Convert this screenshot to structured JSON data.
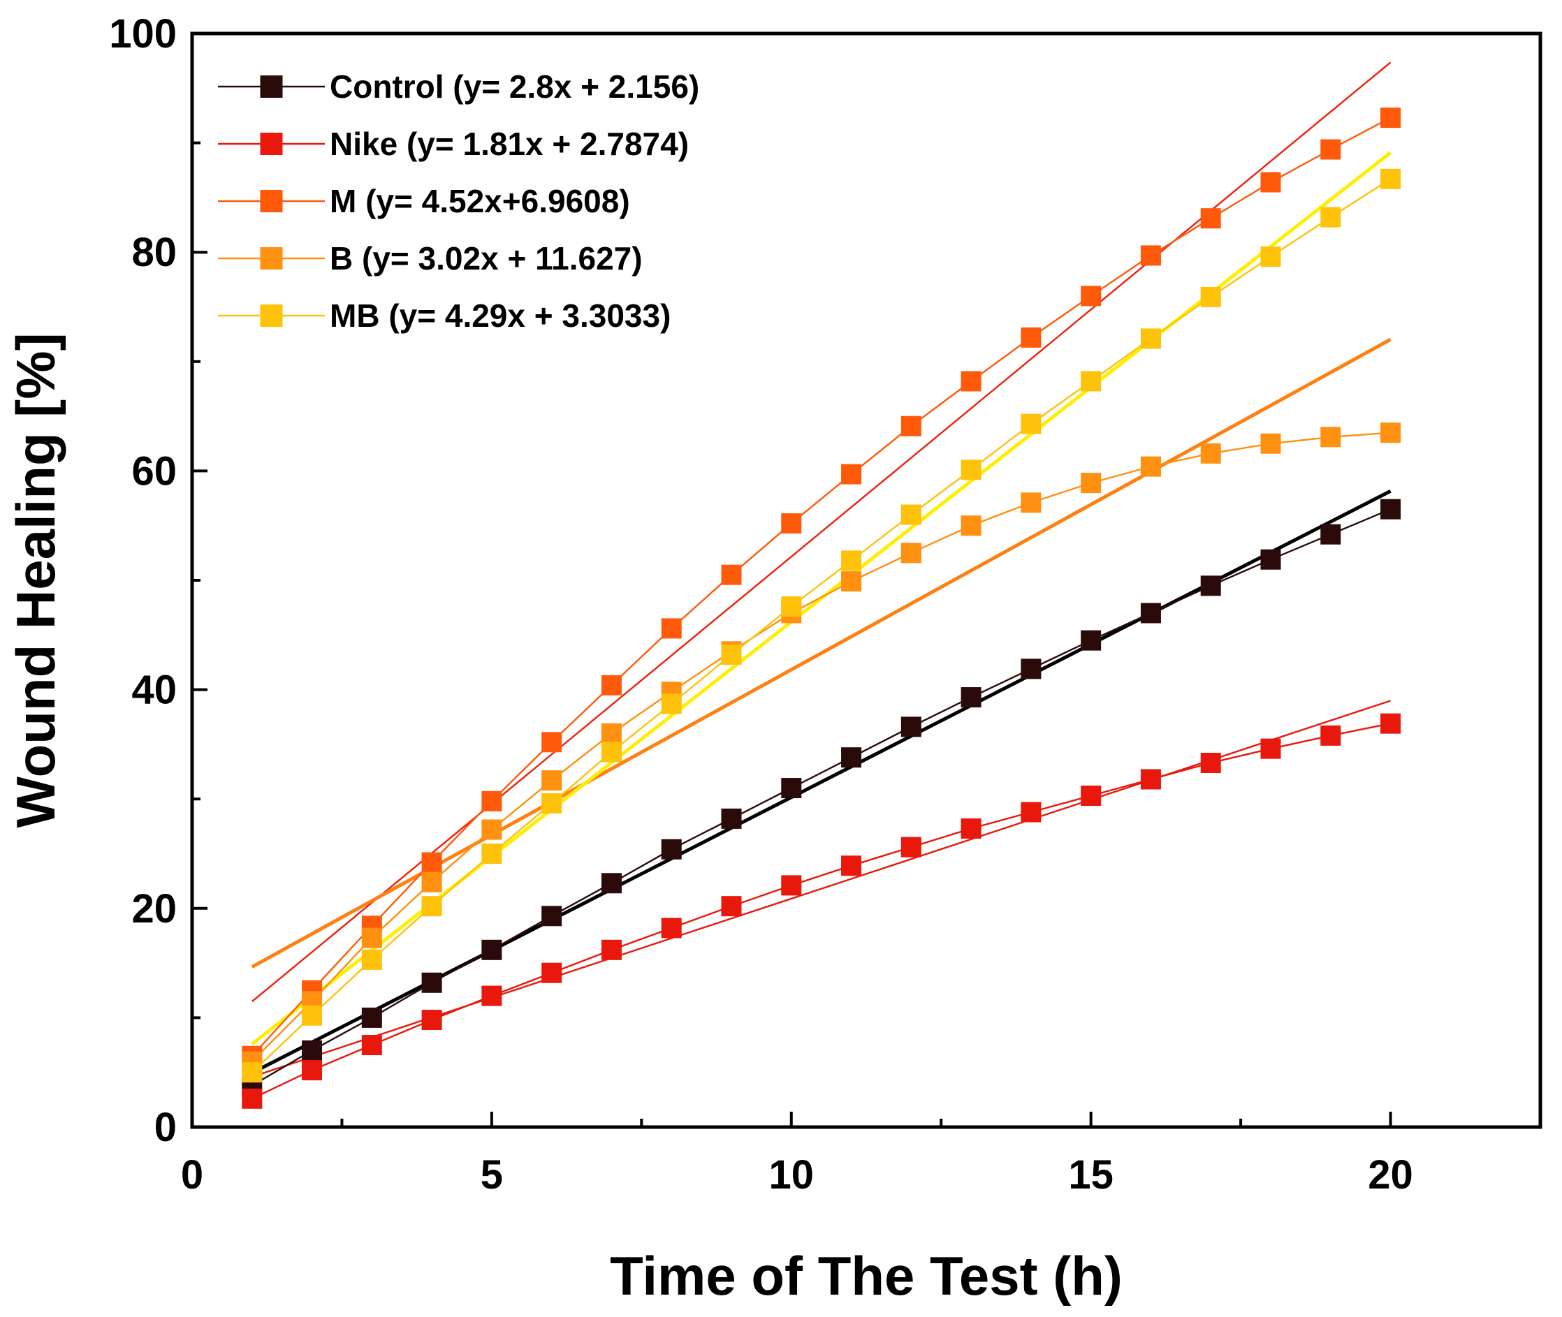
{
  "chart_data": {
    "type": "line",
    "title": "",
    "xlabel": "Time of The Test (h)",
    "ylabel": "Wound Healing [%]",
    "xlim": [
      0,
      22.5
    ],
    "ylim": [
      0,
      100
    ],
    "x_ticks": [
      0,
      5,
      10,
      15,
      20
    ],
    "x_tick_labels": [
      "0",
      "5",
      "10",
      "15",
      "20"
    ],
    "x_minor_ticks": [
      2.5,
      7.5,
      12.5,
      17.5,
      22.5
    ],
    "y_ticks": [
      0,
      20,
      40,
      60,
      80,
      100
    ],
    "y_tick_labels": [
      "0",
      "20",
      "40",
      "60",
      "80",
      "100"
    ],
    "y_minor_ticks": [
      10,
      30,
      50,
      70,
      90
    ],
    "grid": false,
    "legend_position": "top-left",
    "x": [
      1,
      2,
      3,
      4,
      5,
      6,
      7,
      8,
      9,
      10,
      11,
      12,
      13,
      14,
      15,
      16,
      17,
      18,
      19,
      20
    ],
    "series": [
      {
        "name": "Control (y= 2.8x + 2.156)",
        "color": "#2b0a0a",
        "fit_color": "#000000",
        "fit_width": "thick",
        "fit": {
          "slope": 2.8,
          "intercept": 2.156
        },
        "values": [
          3.8,
          7.0,
          10.0,
          13.2,
          16.2,
          19.3,
          22.3,
          25.4,
          28.2,
          31.0,
          33.8,
          36.6,
          39.3,
          41.9,
          44.5,
          47.0,
          49.5,
          51.9,
          54.2,
          56.5
        ]
      },
      {
        "name": "Nike (y= 1.81x + 2.7874)",
        "color": "#e8180c",
        "fit_color": "#e8180c",
        "fit_width": "thin",
        "fit": {
          "slope": 1.81,
          "intercept": 2.7874
        },
        "values": [
          2.6,
          5.2,
          7.5,
          9.8,
          12.0,
          14.1,
          16.2,
          18.2,
          20.2,
          22.1,
          23.9,
          25.6,
          27.3,
          28.8,
          30.3,
          31.8,
          33.3,
          34.6,
          35.8,
          36.9
        ]
      },
      {
        "name": "M (y= 4.52x+6.9608)",
        "color": "#ff5a0a",
        "fit_color": "#f01e0a",
        "fit_width": "thin",
        "fit": {
          "slope": 4.52,
          "intercept": 6.9608
        },
        "values": [
          6.5,
          12.5,
          18.4,
          24.2,
          29.8,
          35.2,
          40.4,
          45.6,
          50.5,
          55.2,
          59.7,
          64.1,
          68.2,
          72.2,
          76.0,
          79.7,
          83.1,
          86.4,
          89.4,
          92.3
        ]
      },
      {
        "name": "B (y= 3.02x + 11.627)",
        "color": "#ff9010",
        "fit_color": "#ff8010",
        "fit_width": "thick",
        "fit": {
          "slope": 3.02,
          "intercept": 11.627
        },
        "values": [
          6.0,
          11.5,
          17.3,
          22.4,
          27.2,
          31.7,
          36.0,
          39.8,
          43.5,
          47.0,
          49.9,
          52.5,
          55.0,
          57.1,
          58.9,
          60.4,
          61.6,
          62.5,
          63.1,
          63.5
        ]
      },
      {
        "name": "MB (y= 4.29x + 3.3033)",
        "color": "#ffc20a",
        "fit_color": "#ffee00",
        "fit_width": "thick",
        "fit": {
          "slope": 4.29,
          "intercept": 3.3033
        },
        "values": [
          5.0,
          10.2,
          15.3,
          20.2,
          25.0,
          29.6,
          34.3,
          38.7,
          43.2,
          47.6,
          51.8,
          56.0,
          60.1,
          64.3,
          68.2,
          72.1,
          75.9,
          79.6,
          83.2,
          86.7
        ]
      }
    ]
  }
}
